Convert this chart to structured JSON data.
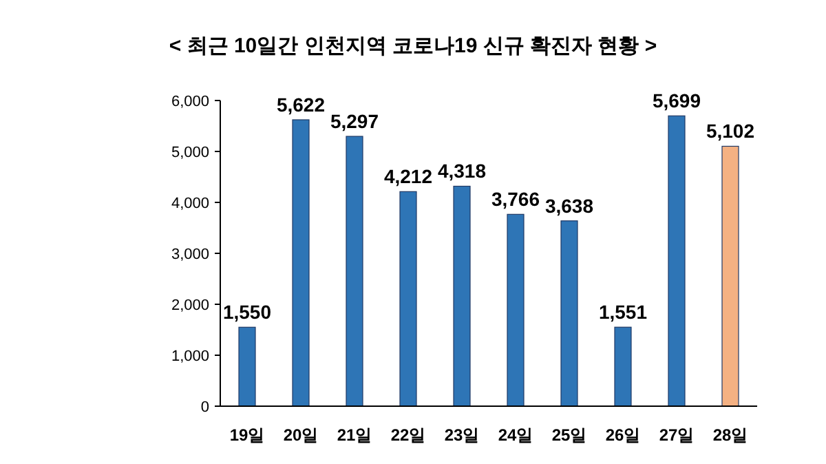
{
  "chart_data": {
    "type": "bar",
    "title": "< 최근 10일간 인천지역 코로나19 신규 확진자 현황 >",
    "categories": [
      "19일",
      "20일",
      "21일",
      "22일",
      "23일",
      "24일",
      "25일",
      "26일",
      "27일",
      "28일"
    ],
    "values": [
      1550,
      5622,
      5297,
      4212,
      4318,
      3766,
      3638,
      1551,
      5699,
      5102
    ],
    "colors": [
      "#2e75b6",
      "#2e75b6",
      "#2e75b6",
      "#2e75b6",
      "#2e75b6",
      "#2e75b6",
      "#2e75b6",
      "#2e75b6",
      "#2e75b6",
      "#f4b183"
    ],
    "value_labels": [
      "1,550",
      "5,622",
      "5,297",
      "4,212",
      "4,318",
      "3,766",
      "3,638",
      "1,551",
      "5,699",
      "5,102"
    ],
    "ylim": [
      0,
      6000
    ],
    "yticks": [
      0,
      {
        "value": 1000,
        "label": "1,000"
      },
      {
        "value": 2000,
        "label": "2,000"
      },
      {
        "value": 3000,
        "label": "3,000"
      },
      {
        "value": 4000,
        "label": "4,000"
      },
      {
        "value": 5000,
        "label": "5,000"
      },
      {
        "value": 6000,
        "label": "6,000"
      }
    ],
    "grid": false
  }
}
